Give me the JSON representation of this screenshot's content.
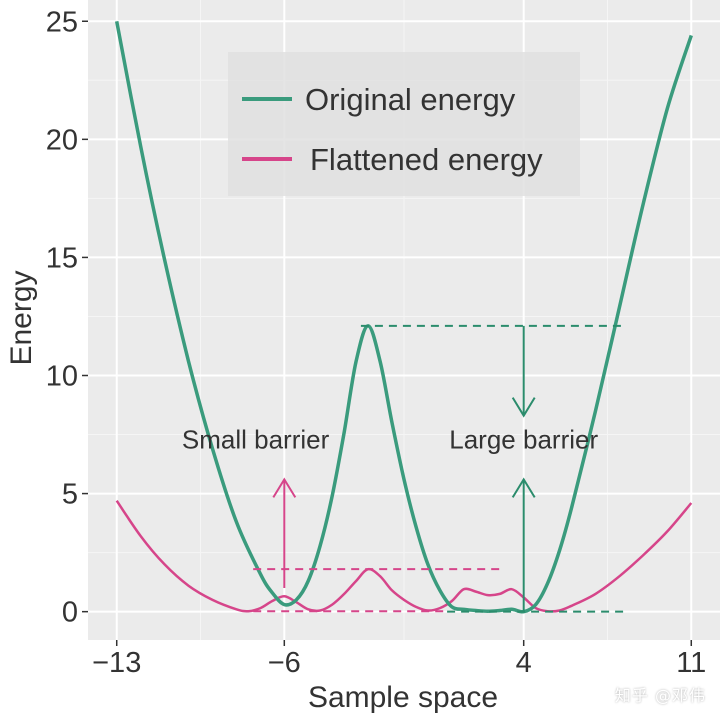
{
  "chart_data": {
    "type": "line",
    "title": "",
    "xlabel": "Sample space",
    "ylabel": "Energy",
    "xlim": [
      -14.2,
      12.2
    ],
    "ylim": [
      -1.2,
      25.9
    ],
    "x_ticks": [
      -13,
      -6,
      4,
      11
    ],
    "x_tick_labels": [
      "−13",
      "−6",
      "4",
      "11"
    ],
    "y_ticks": [
      0,
      5,
      10,
      15,
      20,
      25
    ],
    "y_tick_labels": [
      "0",
      "5",
      "10",
      "15",
      "20",
      "25"
    ],
    "grid": true,
    "legend_position": "top-center",
    "series": [
      {
        "name": "Original energy",
        "color": "#3a9b7d",
        "x": [
          -13,
          -12,
          -11,
          -10,
          -9,
          -8,
          -7,
          -6.5,
          -6,
          -5.5,
          -5,
          -4.5,
          -4,
          -3.5,
          -3,
          -2.5,
          -2,
          -1.5,
          -1,
          -0.5,
          0,
          0.5,
          1,
          1.5,
          2,
          2.5,
          3,
          3.5,
          4,
          4.5,
          5,
          5.5,
          6,
          7,
          8,
          9,
          10,
          11
        ],
        "y": [
          25.0,
          19.7,
          14.9,
          10.6,
          6.9,
          3.8,
          1.6,
          0.8,
          0.3,
          0.5,
          1.3,
          2.8,
          4.9,
          7.6,
          10.6,
          12.1,
          10.6,
          8.0,
          5.6,
          3.6,
          2.0,
          0.9,
          0.2,
          0.1,
          0.05,
          0.02,
          0.05,
          0.1,
          0.0,
          0.3,
          1.2,
          2.6,
          4.4,
          8.5,
          12.9,
          17.3,
          21.3,
          24.4
        ]
      },
      {
        "name": "Flattened energy",
        "color": "#d6458a",
        "x": [
          -13,
          -12,
          -11,
          -10,
          -9,
          -8,
          -7.5,
          -7,
          -6.5,
          -6,
          -5.5,
          -5,
          -4.5,
          -4,
          -3.5,
          -3,
          -2.5,
          -2,
          -1.5,
          -1,
          -0.5,
          0,
          0.5,
          1,
          1.5,
          2,
          2.5,
          3,
          3.5,
          4,
          4.5,
          5,
          5.5,
          6,
          7,
          8,
          9,
          10,
          11
        ],
        "y": [
          4.7,
          3.2,
          2.0,
          1.1,
          0.5,
          0.1,
          0.02,
          0.15,
          0.45,
          0.65,
          0.4,
          0.1,
          0.05,
          0.3,
          0.75,
          1.3,
          1.8,
          1.5,
          0.9,
          0.5,
          0.2,
          0.05,
          0.15,
          0.45,
          0.95,
          0.85,
          0.7,
          0.75,
          0.95,
          0.6,
          0.15,
          0.02,
          0.05,
          0.25,
          0.75,
          1.5,
          2.4,
          3.4,
          4.6
        ]
      }
    ],
    "annotations": {
      "small_barrier": {
        "text": "Small barrier",
        "color": "#d6458a",
        "label_at": [
          -7.2,
          6.9
        ],
        "arrow_x": -6,
        "arrow_from": 1.0,
        "arrow_to": 5.6,
        "dashed_y": 1.8,
        "dashed_x": [
          -7.3,
          3.0
        ],
        "base_dashed_y": 0.02,
        "base_dashed_x": [
          -7.3,
          0.8
        ]
      },
      "large_barrier": {
        "text": "Large barrier",
        "color": "#2b8c6c",
        "label_at": [
          4.0,
          6.9
        ],
        "up_arrow_x": 4,
        "up_arrow_from": 0.0,
        "up_arrow_to": 5.6,
        "down_arrow_x": 4,
        "down_arrow_from": 12.1,
        "down_arrow_to": 8.3,
        "top_dashed_y": 12.1,
        "top_dashed_x": [
          -2.8,
          8.2
        ],
        "base_dashed_y": 0.0,
        "base_dashed_x": [
          0.8,
          8.2
        ]
      }
    }
  },
  "watermark": "知乎 @邓伟"
}
